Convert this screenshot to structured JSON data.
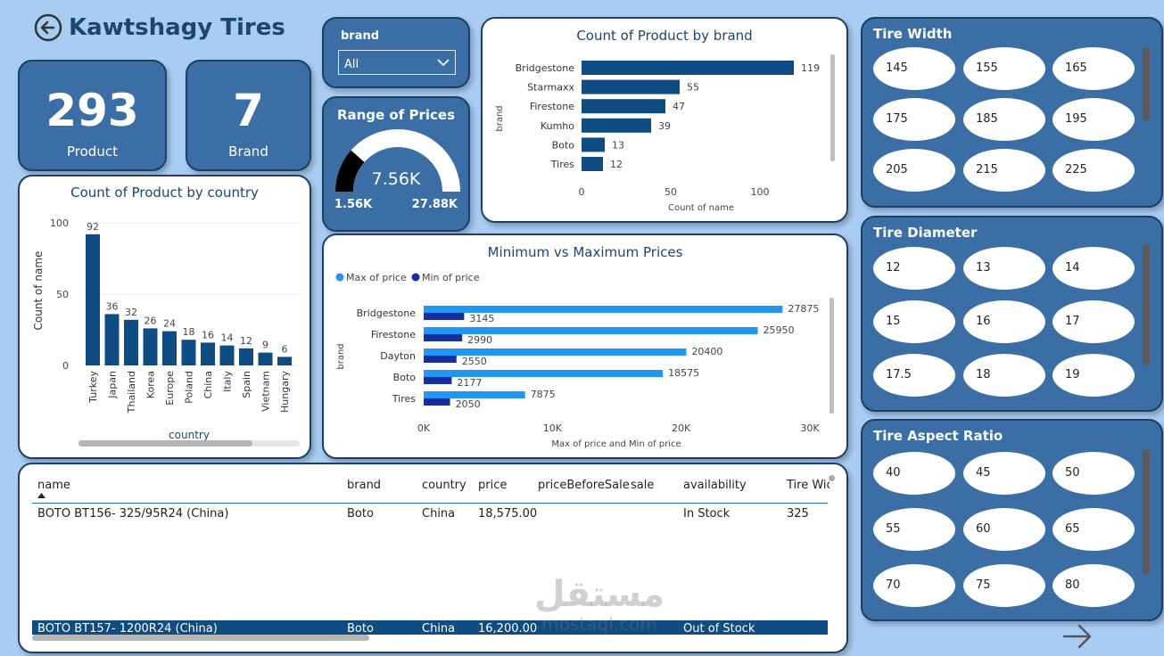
{
  "header": {
    "title": "Kawtshagy Tires",
    "back_icon": "back-arrow-icon"
  },
  "kpis": [
    {
      "value": "293",
      "label": "Product"
    },
    {
      "value": "7",
      "label": "Brand"
    }
  ],
  "brand_slicer": {
    "title": "brand",
    "selected": "All"
  },
  "price_gauge": {
    "title": "Range of Prices",
    "value": "7.56K",
    "min": "1.56K",
    "max": "27.88K",
    "fill_fraction": 0.23
  },
  "colors": {
    "bg": "#a8ccf2",
    "panel_blue": "#3a6ea5",
    "bar_dark": "#0f4c81",
    "bar_light": "#2196f3",
    "bar_navy": "#1a2da0"
  },
  "chart_data": [
    {
      "type": "bar",
      "title": "Count of Product by brand",
      "orientation": "horizontal",
      "categories": [
        "Bridgestone",
        "Starmaxx",
        "Firestone",
        "Kumho",
        "Boto",
        "Tires"
      ],
      "values": [
        119,
        55,
        47,
        39,
        13,
        12
      ],
      "xlabel": "Count of name",
      "ylabel": "brand",
      "xlim": [
        0,
        125
      ],
      "xticks": [
        "0",
        "50",
        "100"
      ]
    },
    {
      "type": "bar",
      "title": "Count of Product by country",
      "orientation": "vertical",
      "categories": [
        "Turkey",
        "Japan",
        "Thailand",
        "Korea",
        "Europe",
        "Poland",
        "China",
        "Italy",
        "Spain",
        "Vietnam",
        "Hungary"
      ],
      "values": [
        92,
        36,
        32,
        26,
        24,
        18,
        16,
        14,
        12,
        9,
        6
      ],
      "xlabel": "country",
      "ylabel": "Count of name",
      "ylim": [
        0,
        100
      ],
      "yticks": [
        "0",
        "50",
        "100"
      ]
    },
    {
      "type": "bar",
      "title": "Minimum vs Maximum Prices",
      "orientation": "horizontal",
      "categories": [
        "Bridgestone",
        "Firestone",
        "Dayton",
        "Boto",
        "Tires"
      ],
      "series": [
        {
          "name": "Max of price",
          "values": [
            27875,
            25950,
            20400,
            18575,
            7875
          ]
        },
        {
          "name": "Min of price",
          "values": [
            3145,
            2990,
            2550,
            2177,
            2050
          ]
        }
      ],
      "xlabel": "Max of price and Min of price",
      "ylabel": "brand",
      "xlim": [
        0,
        30000
      ],
      "xticks": [
        "0K",
        "10K",
        "20K",
        "30K"
      ],
      "legend": "top-left"
    }
  ],
  "tire_width": {
    "title": "Tire Width",
    "options": [
      "145",
      "155",
      "165",
      "175",
      "185",
      "195",
      "205",
      "215",
      "225"
    ]
  },
  "tire_diameter": {
    "title": "Tire Diameter",
    "options": [
      "12",
      "13",
      "14",
      "15",
      "16",
      "17",
      "17.5",
      "18",
      "19"
    ]
  },
  "tire_aspect": {
    "title": "Tire Aspect Ratio",
    "options": [
      "40",
      "45",
      "50",
      "55",
      "60",
      "65",
      "70",
      "75",
      "80"
    ]
  },
  "table": {
    "columns": [
      "name",
      "brand",
      "country",
      "price",
      "priceBeforeSale",
      "sale",
      "availability",
      "Tire Wic"
    ],
    "rows": [
      [
        "BOTO BT156- 325/95R24 (China)",
        "Boto",
        "China",
        "18,575.00",
        "",
        "",
        "In Stock",
        "325"
      ],
      [
        "BOTO BT157- 1200R24 (China)",
        "Boto",
        "China",
        "16,200.00",
        "",
        "",
        "Out of Stock",
        ""
      ]
    ]
  },
  "watermark": {
    "arabic": "مستقل",
    "latin": "mostaql.com"
  },
  "next_icon": "next-arrow-icon"
}
